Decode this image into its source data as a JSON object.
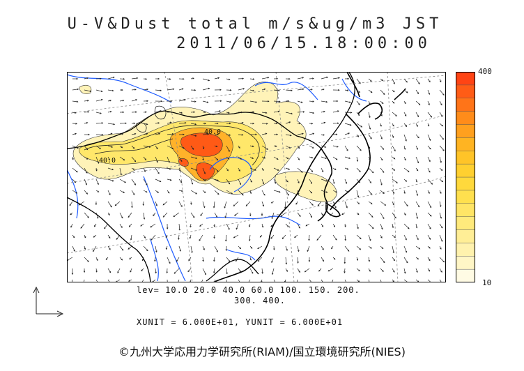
{
  "title": {
    "line1": "U-V&Dust total m/s&ug/m3 JST",
    "line2": "2011/06/15.18:00:00"
  },
  "colorbar": {
    "max_label": "400",
    "min_label": "10",
    "colors": [
      "#fffbe4",
      "#fff6c6",
      "#fff2ae",
      "#ffee96",
      "#ffea7c",
      "#ffe566",
      "#ffe04e",
      "#ffd93c",
      "#ffd030",
      "#ffc428",
      "#ffb422",
      "#ffa01e",
      "#ff8c1a",
      "#ff7418",
      "#ff5c16",
      "#ff4414"
    ]
  },
  "map": {
    "contour_labels": [
      "40.0",
      "40.0"
    ],
    "coast_color": "#000000",
    "river_color": "#1f5cff",
    "dust_colors": {
      "light": "#fff3b8",
      "medium": "#ffe76a",
      "strong": "#ffb22a",
      "heavy": "#ff5a16"
    }
  },
  "legend": {
    "lev_line1": "lev= 10.0 20.0 40.0 60.0 100. 150. 200.",
    "lev_line2": "300. 400.",
    "unit_line": "XUNIT = 6.000E+01, YUNIT = 6.000E+01"
  },
  "credit": "©九州大学応用力学研究所(RIAM)/国立環境研究所(NIES)"
}
